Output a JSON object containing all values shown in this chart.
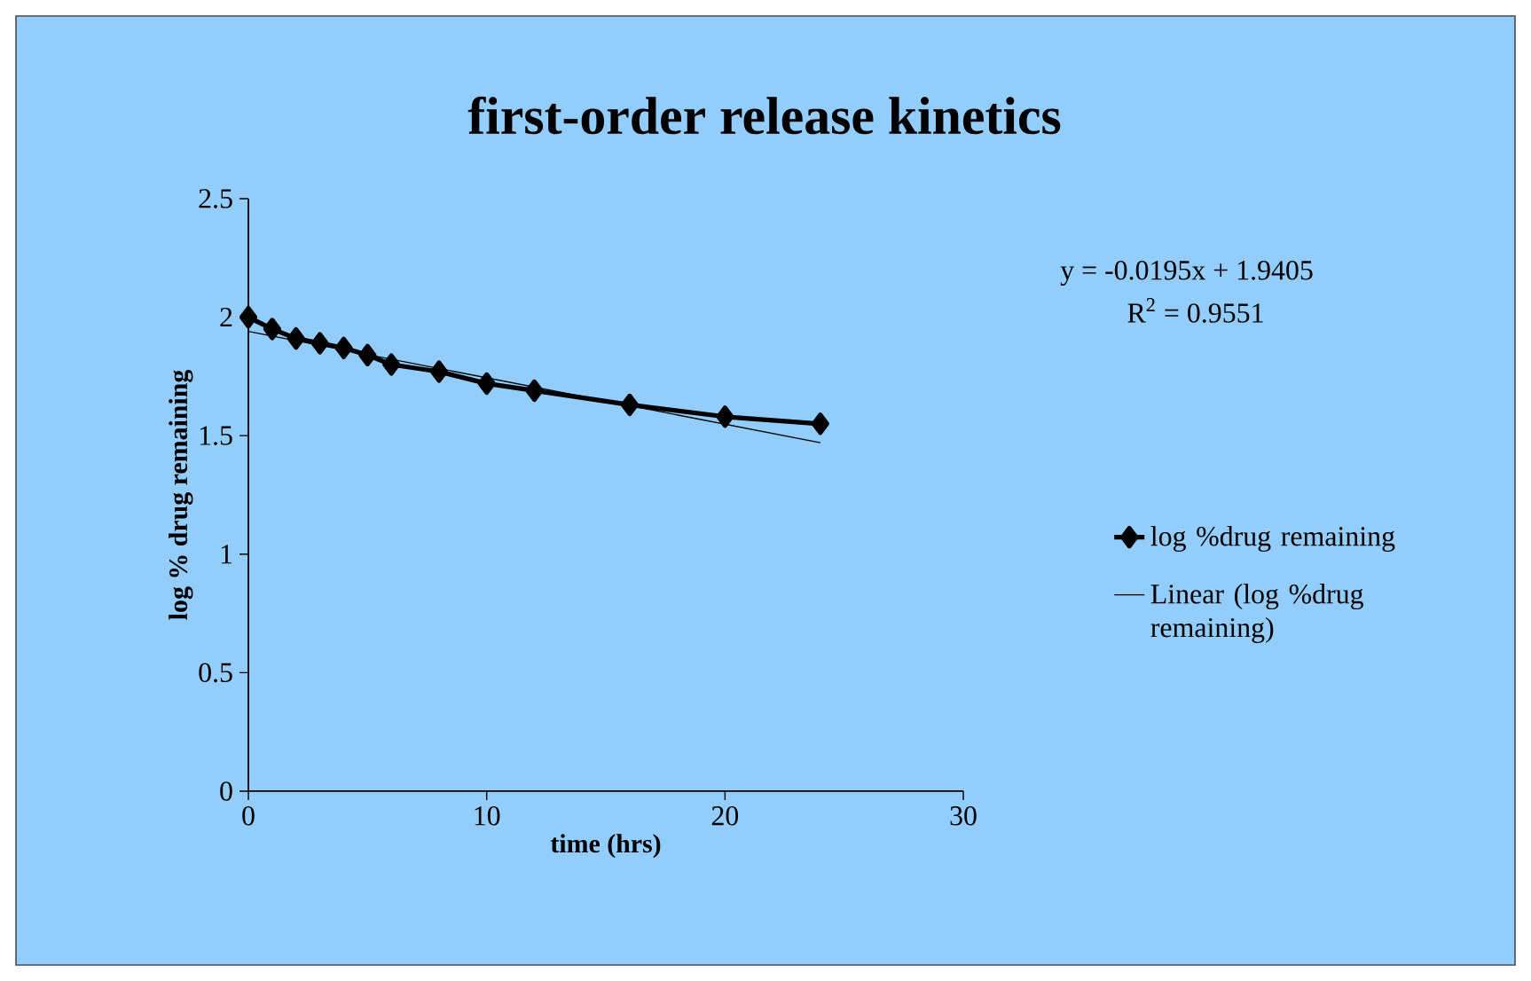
{
  "chart_data": {
    "type": "line",
    "title": "first-order release kinetics",
    "xlabel": "time (hrs)",
    "ylabel": "log % drug remaining",
    "xlim": [
      0,
      30
    ],
    "xticks": [
      0,
      10,
      20,
      30
    ],
    "ylim": [
      0,
      2.5
    ],
    "yticks": [
      0,
      0.5,
      1,
      1.5,
      2,
      2.5
    ],
    "series": [
      {
        "name": "log %drug remaining",
        "color": "#000000",
        "marker": "diamond",
        "x": [
          0,
          1,
          2,
          3,
          4,
          5,
          6,
          8,
          10,
          12,
          16,
          20,
          24
        ],
        "values": [
          2.0,
          1.95,
          1.91,
          1.89,
          1.87,
          1.84,
          1.8,
          1.77,
          1.72,
          1.69,
          1.63,
          1.58,
          1.55
        ]
      },
      {
        "name": "Linear (log %drug remaining)",
        "color": "#000000",
        "marker": "none",
        "x": [
          0,
          24
        ],
        "values": [
          1.94,
          1.47
        ]
      }
    ],
    "annotations": [
      "y = -0.0195x  + 1.9405",
      "R$^{2}$ = 0.9551"
    ],
    "legend": "right",
    "grid": false
  }
}
